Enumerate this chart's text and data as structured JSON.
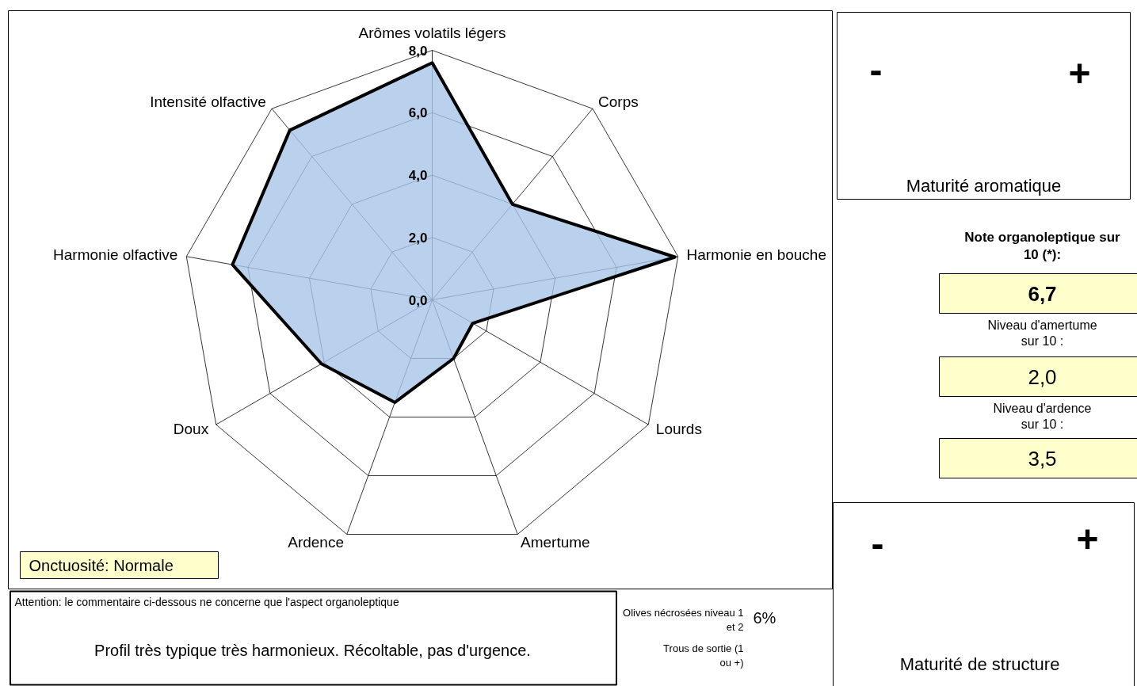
{
  "chart_data": {
    "type": "radar",
    "categories": [
      "Arômes volatils légers",
      "Corps",
      "Harmonie en bouche",
      "Lourds",
      "Amertume",
      "Ardence",
      "Doux",
      "Harmonie olfactive",
      "Intensité olfactive"
    ],
    "series": [
      {
        "color": "#000000",
        "values": [
          7.6,
          4.0,
          7.9,
          1.5,
          2.0,
          3.5,
          4.1,
          6.5,
          7.1
        ]
      }
    ],
    "ylim": [
      0,
      8
    ],
    "yticks": [
      {
        "value": 0,
        "label": "0,0"
      },
      {
        "value": 2,
        "label": "2,0"
      },
      {
        "value": 4,
        "label": "4,0"
      },
      {
        "value": 6,
        "label": "6,0"
      },
      {
        "value": 8,
        "label": "8,0"
      }
    ],
    "grid": true,
    "annotations": [
      "Onctuosité:    Normale",
      "Attention: le commentaire ci-dessous ne concerne que l'aspect organoleptique",
      "Profil très typique très harmonieux. Récoltable, pas d'urgence.",
      "Olives nécrosées niveau 1 et 2",
      "6%",
      "Trous de sortie (1 ou +)",
      "-",
      "+",
      "Maturité aromatique",
      "-",
      "+",
      "Maturité de structure",
      "Note organoleptique sur 10 (*):",
      "6,7",
      "Niveau d'amertume sur 10 :",
      "2,0",
      "Niveau d'ardence sur 10 :",
      "3,5"
    ]
  }
}
